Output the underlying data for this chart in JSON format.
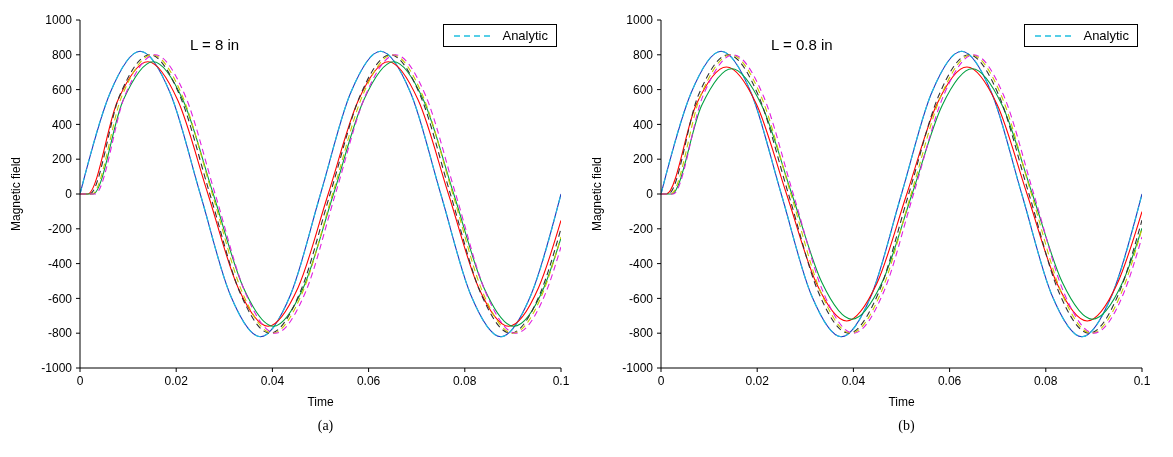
{
  "chart_data": [
    {
      "type": "line",
      "xlabel": "Time",
      "ylabel": "Magnetic field",
      "annotations": [
        "L = 8 in",
        "(a)"
      ],
      "legend": "top right",
      "xlim": [
        0,
        0.1
      ],
      "xticks": [
        0,
        0.02,
        0.04,
        0.06,
        0.08,
        0.1
      ],
      "ylim": [
        -1000,
        1000
      ],
      "yticks": [
        -1000,
        -800,
        -600,
        -400,
        -200,
        0,
        200,
        400,
        600,
        800,
        1000
      ],
      "series": [
        {
          "color": "#1f3fbf",
          "line_style": "solid",
          "x": [
            0,
            0.00625,
            0.0125,
            0.01875,
            0.025,
            0.03125,
            0.0375,
            0.04375,
            0.05,
            0.05625,
            0.0625,
            0.06875,
            0.075,
            0.08125,
            0.0875,
            0.09375,
            0.1
          ],
          "values": [
            0,
            580,
            820,
            580,
            0,
            -580,
            -820,
            -580,
            0,
            580,
            820,
            580,
            0,
            -580,
            -820,
            -580,
            0
          ]
        },
        {
          "name": "Analytic",
          "color": "#1fbfe0",
          "line_style": "dashed",
          "x": [
            0,
            0.00625,
            0.0125,
            0.01875,
            0.025,
            0.03125,
            0.0375,
            0.04375,
            0.05,
            0.05625,
            0.0625,
            0.06875,
            0.075,
            0.08125,
            0.0875,
            0.09375,
            0.1
          ],
          "values": [
            0,
            580,
            820,
            580,
            0,
            -580,
            -820,
            -580,
            0,
            580,
            820,
            580,
            0,
            -580,
            -820,
            -580,
            0
          ]
        },
        {
          "color": "#ff0000",
          "line_style": "solid",
          "x": [
            0,
            0.0016,
            0.00785,
            0.0141,
            0.02035,
            0.0266,
            0.03285,
            0.0391,
            0.04535,
            0.0516,
            0.05785,
            0.0641,
            0.07035,
            0.0766,
            0.08285,
            0.0891,
            0.09535,
            0.1
          ],
          "values": [
            0,
            0,
            537,
            760,
            537,
            0,
            -537,
            -760,
            -537,
            0,
            537,
            760,
            537,
            0,
            -537,
            -760,
            -537,
            -152
          ]
        },
        {
          "color": "#00a040",
          "line_style": "solid",
          "x": [
            0,
            0.0027,
            0.00895,
            0.0152,
            0.02145,
            0.0277,
            0.03395,
            0.0402,
            0.04645,
            0.0527,
            0.05895,
            0.0652,
            0.07145,
            0.0777,
            0.08395,
            0.0902,
            0.09645,
            0.1
          ],
          "values": [
            0,
            0,
            537,
            760,
            537,
            0,
            -537,
            -760,
            -537,
            0,
            537,
            760,
            537,
            0,
            -537,
            -760,
            -537,
            -253
          ]
        },
        {
          "color": "#333333",
          "line_style": "dashed",
          "x": [
            0,
            0.002,
            0.00825,
            0.0145,
            0.02075,
            0.027,
            0.03325,
            0.0395,
            0.04575,
            0.052,
            0.05825,
            0.0645,
            0.07075,
            0.077,
            0.08325,
            0.0895,
            0.09575,
            0.1
          ],
          "values": [
            0,
            0,
            566,
            800,
            566,
            0,
            -566,
            -800,
            -566,
            0,
            566,
            800,
            566,
            0,
            -566,
            -800,
            -566,
            -199
          ]
        },
        {
          "color": "#c8c800",
          "line_style": "dashed",
          "x": [
            0,
            0.0025,
            0.00875,
            0.015,
            0.02125,
            0.0275,
            0.03375,
            0.04,
            0.04625,
            0.0525,
            0.05875,
            0.065,
            0.07125,
            0.0775,
            0.08375,
            0.09,
            0.09625,
            0.1
          ],
          "values": [
            0,
            0,
            566,
            800,
            566,
            0,
            -566,
            -800,
            -566,
            0,
            566,
            800,
            566,
            0,
            -566,
            -800,
            -566,
            -247
          ]
        },
        {
          "color": "#e020e0",
          "line_style": "dashed",
          "x": [
            0,
            0.0031,
            0.00935,
            0.0156,
            0.02185,
            0.0281,
            0.03435,
            0.0406,
            0.04685,
            0.0531,
            0.05935,
            0.0656,
            0.07185,
            0.0781,
            0.08435,
            0.0906,
            0.09685,
            0.1
          ],
          "values": [
            0,
            0,
            566,
            800,
            566,
            0,
            -566,
            -800,
            -566,
            0,
            566,
            800,
            566,
            0,
            -566,
            -800,
            -566,
            -304
          ]
        }
      ]
    },
    {
      "type": "line",
      "xlabel": "Time",
      "ylabel": "Magnetic field",
      "annotations": [
        "L = 0.8 in",
        "(b)"
      ],
      "legend": "top right",
      "xlim": [
        0,
        0.1
      ],
      "xticks": [
        0,
        0.02,
        0.04,
        0.06,
        0.08,
        0.1
      ],
      "ylim": [
        -1000,
        1000
      ],
      "yticks": [
        -1000,
        -800,
        -600,
        -400,
        -200,
        0,
        200,
        400,
        600,
        800,
        1000
      ],
      "series": [
        {
          "color": "#1f3fbf",
          "line_style": "solid",
          "x": [
            0,
            0.00625,
            0.0125,
            0.01875,
            0.025,
            0.03125,
            0.0375,
            0.04375,
            0.05,
            0.05625,
            0.0625,
            0.06875,
            0.075,
            0.08125,
            0.0875,
            0.09375,
            0.1
          ],
          "values": [
            0,
            580,
            820,
            580,
            0,
            -580,
            -820,
            -580,
            0,
            580,
            820,
            580,
            0,
            -580,
            -820,
            -580,
            0
          ]
        },
        {
          "name": "Analytic",
          "color": "#1fbfe0",
          "line_style": "dashed",
          "x": [
            0,
            0.00625,
            0.0125,
            0.01875,
            0.025,
            0.03125,
            0.0375,
            0.04375,
            0.05,
            0.05625,
            0.0625,
            0.06875,
            0.075,
            0.08125,
            0.0875,
            0.09375,
            0.1
          ],
          "values": [
            0,
            580,
            820,
            580,
            0,
            -580,
            -820,
            -580,
            0,
            580,
            820,
            580,
            0,
            -580,
            -820,
            -580,
            0
          ]
        },
        {
          "color": "#ff0000",
          "line_style": "solid",
          "x": [
            0,
            0.0011,
            0.00735,
            0.0136,
            0.01985,
            0.0261,
            0.03235,
            0.0386,
            0.04485,
            0.0511,
            0.05735,
            0.0636,
            0.06985,
            0.0761,
            0.08235,
            0.0886,
            0.09485,
            0.1
          ],
          "values": [
            0,
            0,
            516,
            730,
            516,
            0,
            -516,
            -730,
            -516,
            0,
            516,
            730,
            516,
            0,
            -516,
            -730,
            -516,
            -101
          ]
        },
        {
          "color": "#00a040",
          "line_style": "solid",
          "x": [
            0,
            0.0022,
            0.00845,
            0.0147,
            0.02095,
            0.0272,
            0.03345,
            0.0397,
            0.04595,
            0.0522,
            0.05845,
            0.0647,
            0.07095,
            0.0772,
            0.08345,
            0.0897,
            0.09595,
            0.1
          ],
          "values": [
            0,
            0,
            509,
            720,
            509,
            0,
            -509,
            -720,
            -509,
            0,
            509,
            720,
            509,
            0,
            -509,
            -720,
            -509,
            -197
          ]
        },
        {
          "color": "#333333",
          "line_style": "dashed",
          "x": [
            0,
            0.0015,
            0.00775,
            0.014,
            0.02025,
            0.0265,
            0.03275,
            0.039,
            0.04525,
            0.0515,
            0.05775,
            0.064,
            0.07025,
            0.0765,
            0.08275,
            0.089,
            0.09525,
            0.1
          ],
          "values": [
            0,
            0,
            566,
            800,
            566,
            0,
            -566,
            -800,
            -566,
            0,
            566,
            800,
            566,
            0,
            -566,
            -800,
            -566,
            -150
          ]
        },
        {
          "color": "#c8c800",
          "line_style": "dashed",
          "x": [
            0,
            0.002,
            0.00825,
            0.0145,
            0.02075,
            0.027,
            0.03325,
            0.0395,
            0.04575,
            0.052,
            0.05825,
            0.0645,
            0.07075,
            0.077,
            0.08325,
            0.0895,
            0.09575,
            0.1
          ],
          "values": [
            0,
            0,
            566,
            800,
            566,
            0,
            -566,
            -800,
            -566,
            0,
            566,
            800,
            566,
            0,
            -566,
            -800,
            -566,
            -199
          ]
        },
        {
          "color": "#e020e0",
          "line_style": "dashed",
          "x": [
            0,
            0.0025,
            0.00875,
            0.015,
            0.02125,
            0.0275,
            0.03375,
            0.04,
            0.04625,
            0.0525,
            0.05875,
            0.065,
            0.07125,
            0.0775,
            0.08375,
            0.09,
            0.09625,
            0.1
          ],
          "values": [
            0,
            0,
            566,
            800,
            566,
            0,
            -566,
            -800,
            -566,
            0,
            566,
            800,
            566,
            0,
            -566,
            -800,
            -566,
            -247
          ]
        }
      ]
    }
  ]
}
